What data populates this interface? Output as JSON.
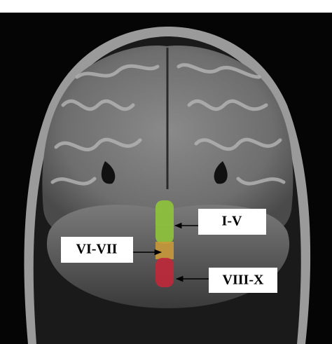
{
  "labels": [
    {
      "text": "I-V"
    },
    {
      "text": "VI-VII"
    },
    {
      "text": "VIII-X"
    }
  ]
}
